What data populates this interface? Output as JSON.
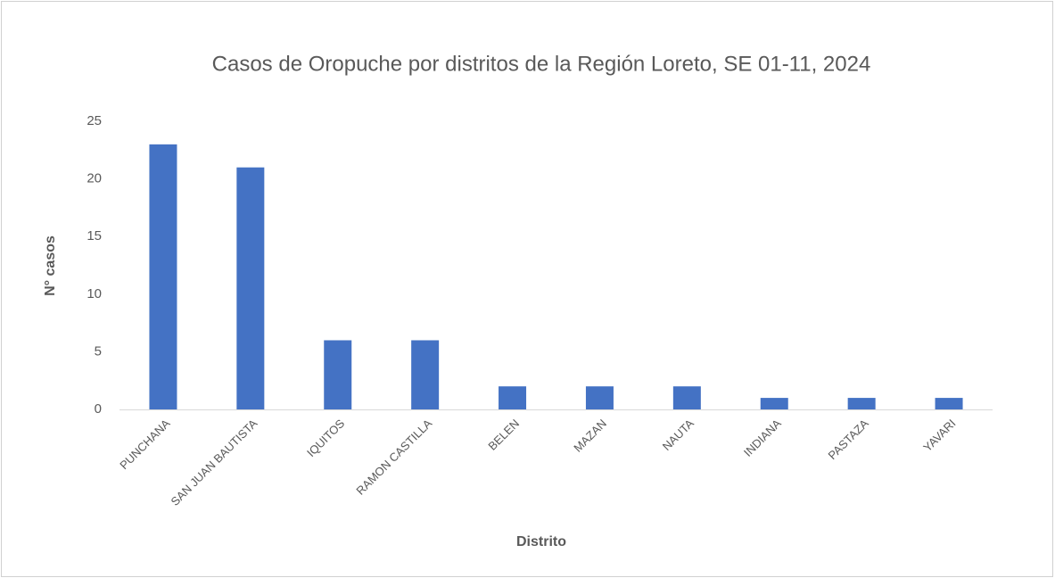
{
  "chart_data": {
    "type": "bar",
    "title": "Casos de Oropuche por distritos de la Región Loreto, SE 01-11, 2024",
    "x_label": "Distrito",
    "y_label": "N° casos",
    "categories": [
      "PUNCHANA",
      "SAN JUAN BAUTISTA",
      "IQUITOS",
      "RAMON CASTILLA",
      "BELEN",
      "MAZAN",
      "NAUTA",
      "INDIANA",
      "PASTAZA",
      "YAVARI"
    ],
    "values": [
      23,
      21,
      6,
      6,
      2,
      2,
      2,
      1,
      1,
      1
    ],
    "color": "#4472c4",
    "ylim": [
      0,
      25
    ],
    "yticks": [
      0,
      5,
      10,
      15,
      20,
      25
    ],
    "grid": false
  }
}
